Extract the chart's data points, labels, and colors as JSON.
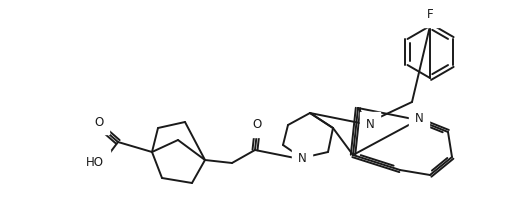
{
  "background_color": "#ffffff",
  "line_color": "#1a1a1a",
  "line_width": 1.4,
  "font_size": 8.5,
  "figsize": [
    5.12,
    2.24
  ],
  "dpi": 100,
  "xlim": [
    0,
    512
  ],
  "ylim": [
    0,
    224
  ]
}
